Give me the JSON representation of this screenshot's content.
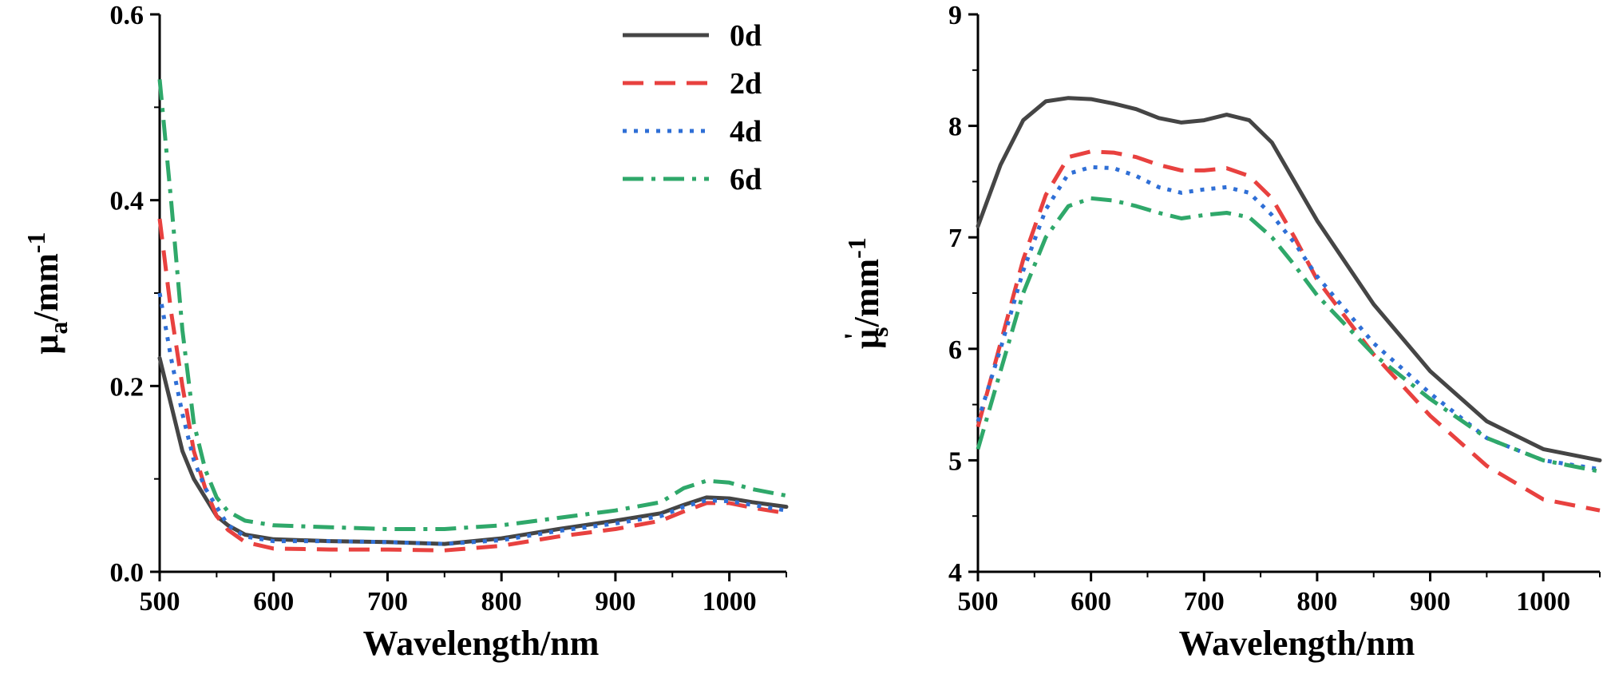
{
  "chart_data": [
    {
      "type": "line",
      "xlabel": "Wavelength/nm",
      "ylabel_main": "μ",
      "ylabel_sub": "a",
      "ylabel_rest": "/mm",
      "ylabel_sup": "-1",
      "xlim": [
        500,
        1050
      ],
      "ylim": [
        0.0,
        0.6
      ],
      "xticks": [
        500,
        600,
        700,
        800,
        900,
        1000
      ],
      "yticks": [
        0.0,
        0.2,
        0.4,
        0.6
      ],
      "ytick_labels": [
        "0.0",
        "0.2",
        "0.4",
        "0.6"
      ],
      "legend_position": "top-right",
      "series": [
        {
          "name": "0d",
          "color": "#454545",
          "dash": "solid",
          "x": [
            500,
            510,
            520,
            530,
            540,
            550,
            560,
            575,
            600,
            650,
            700,
            750,
            800,
            850,
            900,
            940,
            960,
            980,
            1000,
            1020,
            1050
          ],
          "y": [
            0.23,
            0.18,
            0.13,
            0.1,
            0.08,
            0.06,
            0.05,
            0.04,
            0.035,
            0.033,
            0.032,
            0.03,
            0.036,
            0.046,
            0.055,
            0.063,
            0.072,
            0.08,
            0.079,
            0.075,
            0.07
          ]
        },
        {
          "name": "2d",
          "color": "#e8413f",
          "dash": "dashed",
          "x": [
            500,
            510,
            520,
            530,
            540,
            550,
            560,
            575,
            600,
            650,
            700,
            750,
            800,
            850,
            900,
            940,
            960,
            980,
            1000,
            1020,
            1050
          ],
          "y": [
            0.38,
            0.28,
            0.2,
            0.13,
            0.09,
            0.06,
            0.045,
            0.032,
            0.025,
            0.024,
            0.024,
            0.023,
            0.028,
            0.038,
            0.046,
            0.055,
            0.065,
            0.074,
            0.074,
            0.069,
            0.063
          ]
        },
        {
          "name": "4d",
          "color": "#2f6fd6",
          "dash": "dotted",
          "x": [
            500,
            510,
            520,
            530,
            540,
            550,
            560,
            575,
            600,
            650,
            700,
            750,
            800,
            850,
            900,
            940,
            960,
            980,
            1000,
            1020,
            1050
          ],
          "y": [
            0.3,
            0.23,
            0.17,
            0.12,
            0.09,
            0.07,
            0.05,
            0.038,
            0.033,
            0.033,
            0.032,
            0.03,
            0.034,
            0.044,
            0.052,
            0.06,
            0.07,
            0.077,
            0.076,
            0.072,
            0.066
          ]
        },
        {
          "name": "6d",
          "color": "#2fa86a",
          "dash": "dashdot",
          "x": [
            500,
            510,
            520,
            530,
            540,
            550,
            560,
            575,
            600,
            650,
            700,
            750,
            800,
            850,
            900,
            940,
            960,
            980,
            1000,
            1020,
            1050
          ],
          "y": [
            0.53,
            0.4,
            0.26,
            0.16,
            0.11,
            0.08,
            0.065,
            0.055,
            0.05,
            0.048,
            0.046,
            0.046,
            0.05,
            0.058,
            0.066,
            0.075,
            0.09,
            0.098,
            0.096,
            0.089,
            0.082
          ]
        }
      ]
    },
    {
      "type": "line",
      "xlabel": "Wavelength/nm",
      "ylabel_main": "μ",
      "ylabel_prime": "'",
      "ylabel_sub": "s",
      "ylabel_rest": "/mm",
      "ylabel_sup": "-1",
      "xlim": [
        500,
        1050
      ],
      "ylim": [
        4,
        9
      ],
      "xticks": [
        500,
        600,
        700,
        800,
        900,
        1000
      ],
      "yticks": [
        4,
        5,
        6,
        7,
        8,
        9
      ],
      "ytick_labels": [
        "4",
        "5",
        "6",
        "7",
        "8",
        "9"
      ],
      "series": [
        {
          "name": "0d",
          "color": "#454545",
          "dash": "solid",
          "x": [
            500,
            520,
            540,
            560,
            580,
            600,
            620,
            640,
            660,
            680,
            700,
            720,
            740,
            760,
            780,
            800,
            850,
            900,
            950,
            1000,
            1050
          ],
          "y": [
            7.1,
            7.65,
            8.05,
            8.22,
            8.25,
            8.24,
            8.2,
            8.15,
            8.07,
            8.03,
            8.05,
            8.1,
            8.05,
            7.85,
            7.5,
            7.15,
            6.4,
            5.8,
            5.35,
            5.1,
            5.0
          ]
        },
        {
          "name": "2d",
          "color": "#e8413f",
          "dash": "dashed",
          "x": [
            500,
            520,
            540,
            560,
            580,
            600,
            620,
            640,
            660,
            680,
            700,
            720,
            740,
            760,
            780,
            800,
            850,
            900,
            950,
            1000,
            1050
          ],
          "y": [
            5.3,
            6.05,
            6.8,
            7.38,
            7.72,
            7.77,
            7.76,
            7.72,
            7.65,
            7.6,
            7.6,
            7.62,
            7.55,
            7.35,
            7.0,
            6.62,
            5.95,
            5.4,
            4.95,
            4.65,
            4.55
          ]
        },
        {
          "name": "4d",
          "color": "#2f6fd6",
          "dash": "dotted",
          "x": [
            500,
            520,
            540,
            560,
            580,
            600,
            620,
            640,
            660,
            680,
            700,
            720,
            740,
            760,
            780,
            800,
            850,
            900,
            950,
            1000,
            1050
          ],
          "y": [
            5.35,
            6.0,
            6.7,
            7.25,
            7.57,
            7.63,
            7.62,
            7.55,
            7.45,
            7.4,
            7.43,
            7.45,
            7.4,
            7.2,
            6.95,
            6.65,
            6.05,
            5.6,
            5.2,
            5.0,
            4.92
          ]
        },
        {
          "name": "6d",
          "color": "#2fa86a",
          "dash": "dashdot",
          "x": [
            500,
            520,
            540,
            560,
            580,
            600,
            620,
            640,
            660,
            680,
            700,
            720,
            740,
            760,
            780,
            800,
            850,
            900,
            950,
            1000,
            1050
          ],
          "y": [
            5.1,
            5.8,
            6.5,
            7.0,
            7.28,
            7.35,
            7.33,
            7.28,
            7.22,
            7.17,
            7.2,
            7.22,
            7.18,
            7.0,
            6.75,
            6.48,
            5.95,
            5.55,
            5.2,
            5.0,
            4.9
          ]
        }
      ]
    }
  ]
}
